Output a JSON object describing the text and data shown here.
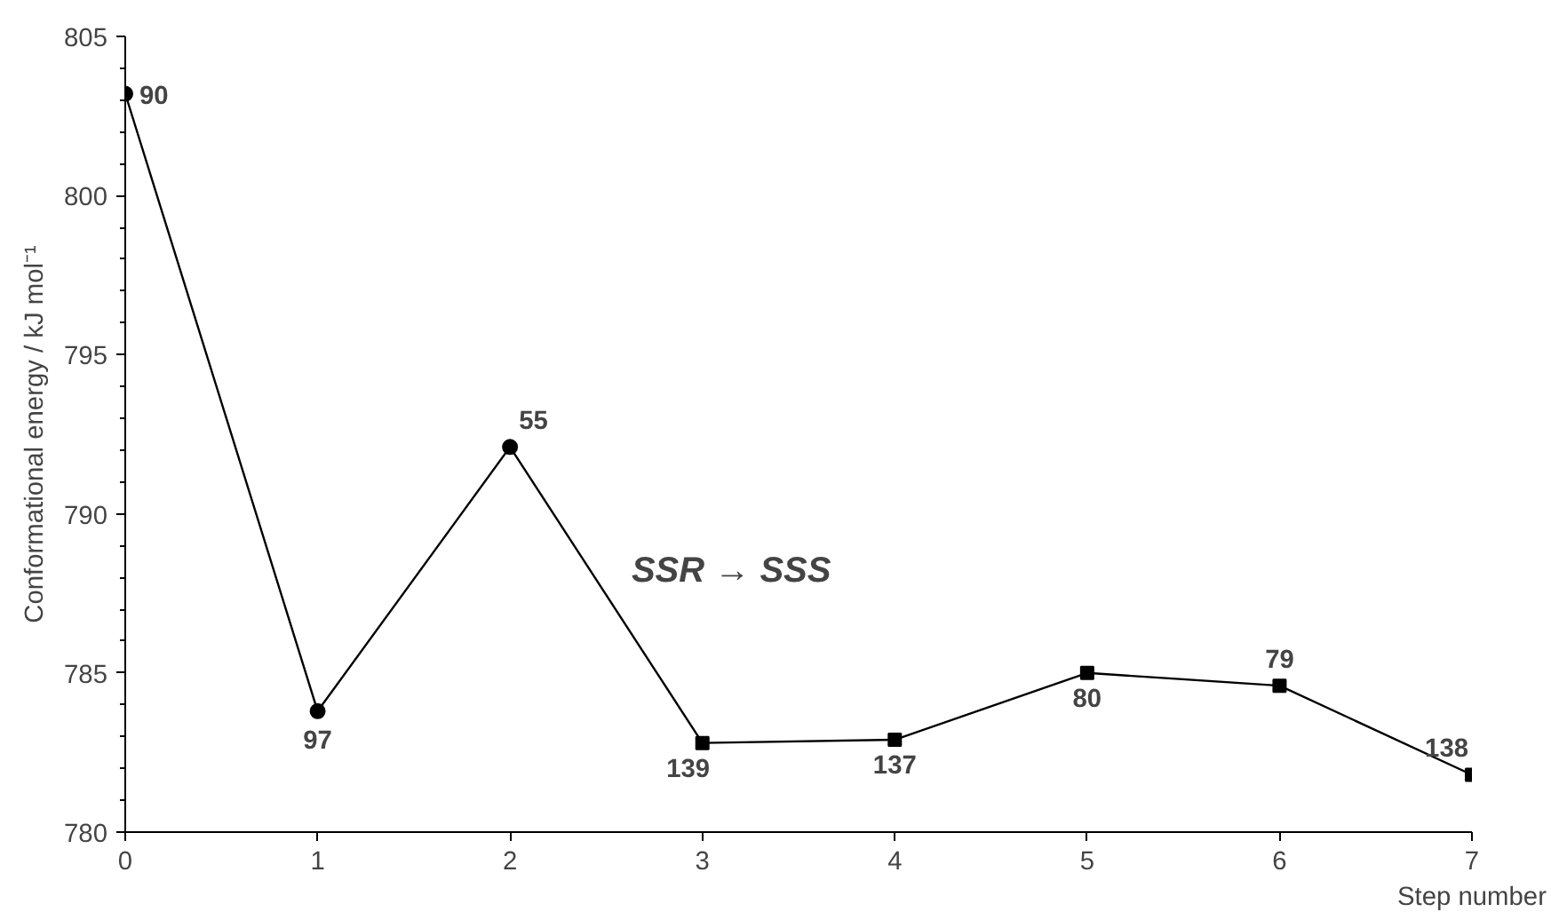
{
  "chart_data": {
    "type": "line",
    "xlabel": "Step number",
    "ylabel": "Conformational energy / kJ mol⁻¹",
    "x": [
      0,
      1,
      2,
      3,
      4,
      5,
      6,
      7
    ],
    "series": [
      {
        "color": "#000000",
        "marker": "none",
        "values": [
          803.2,
          783.8,
          792.1,
          782.8,
          782.9,
          785.0,
          784.6,
          781.8
        ]
      },
      {
        "type": "scatter",
        "color": "#000000",
        "marker": "circle",
        "x": [
          0,
          1,
          2
        ],
        "values": [
          803.2,
          783.8,
          792.1
        ]
      },
      {
        "type": "scatter",
        "color": "#000000",
        "marker": "square",
        "x": [
          3,
          4,
          5,
          6,
          7
        ],
        "values": [
          782.8,
          782.9,
          785.0,
          784.6,
          781.8
        ]
      }
    ],
    "annotations": [
      {
        "text": "90",
        "x": 0,
        "y": 803.2
      },
      {
        "text": "97",
        "x": 1,
        "y": 783.8
      },
      {
        "text": "55",
        "x": 2,
        "y": 792.1
      },
      {
        "text": "139",
        "x": 3,
        "y": 782.8
      },
      {
        "text": "137",
        "x": 4,
        "y": 782.9
      },
      {
        "text": "80",
        "x": 5,
        "y": 785.0
      },
      {
        "text": "79",
        "x": 6,
        "y": 784.6
      },
      {
        "text": "138",
        "x": 7,
        "y": 781.8
      },
      "SSR → SSS"
    ],
    "xlim": [
      0,
      7
    ],
    "ylim": [
      780,
      805
    ],
    "xticks": [
      0,
      1,
      2,
      3,
      4,
      5,
      6,
      7
    ],
    "yticks": [
      780,
      785,
      790,
      795,
      800,
      805
    ],
    "grid": false
  }
}
